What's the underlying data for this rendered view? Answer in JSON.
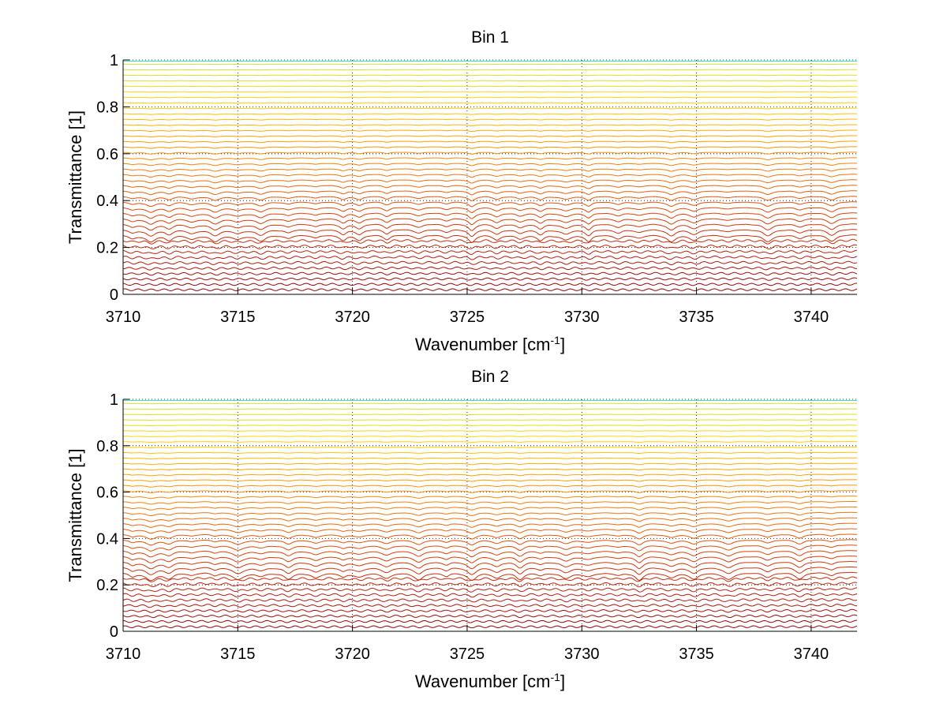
{
  "figure": {
    "background": "#ffffff"
  },
  "chart_data": [
    {
      "type": "line",
      "title": "Bin 1",
      "xlabel": "Wavenumber [cm",
      "xlabel_superscript": "-1",
      "xlabel_suffix": "]",
      "ylabel": "Transmittance [1]",
      "xlim": [
        3710,
        3742
      ],
      "ylim": [
        0,
        1
      ],
      "xticks": [
        3710,
        3715,
        3720,
        3725,
        3730,
        3735,
        3740
      ],
      "xtick_labels": [
        "3710",
        "3715",
        "3720",
        "3725",
        "3730",
        "3735",
        "3740"
      ],
      "yticks": [
        0,
        0.2,
        0.4,
        0.6,
        0.8,
        1
      ],
      "ytick_labels": [
        "0",
        "0.2",
        "0.4",
        "0.6",
        "0.8",
        "1"
      ],
      "grid": true,
      "legend": "none",
      "series_count": 50,
      "absorption_lines": [
        3710.4,
        3711.2,
        3712.0,
        3713.0,
        3714.0,
        3715.0,
        3716.0,
        3717.2,
        3718.4,
        3719.6,
        3720.3,
        3721.5,
        3722.9,
        3724.1,
        3725.2,
        3726.3,
        3727.3,
        3728.2,
        3729.3,
        3730.3,
        3731.6,
        3732.5,
        3733.9,
        3734.9,
        3736.4,
        3738.1,
        3739.5,
        3740.9
      ],
      "colormap": [
        "#8b0000",
        "#b32010",
        "#d4400d",
        "#f07010",
        "#ffa000",
        "#ffd700",
        "#c8e63c",
        "#40e0d0"
      ],
      "notes_visible": "family of transmittance spectra from near 0 to near 1"
    },
    {
      "type": "line",
      "title": "Bin 2",
      "xlabel": "Wavenumber [cm",
      "xlabel_superscript": "-1",
      "xlabel_suffix": "]",
      "ylabel": "Transmittance [1]",
      "xlim": [
        3710,
        3742
      ],
      "ylim": [
        0,
        1
      ],
      "xticks": [
        3710,
        3715,
        3720,
        3725,
        3730,
        3735,
        3740
      ],
      "xtick_labels": [
        "3710",
        "3715",
        "3720",
        "3725",
        "3730",
        "3735",
        "3740"
      ],
      "yticks": [
        0,
        0.2,
        0.4,
        0.6,
        0.8,
        1
      ],
      "ytick_labels": [
        "0",
        "0.2",
        "0.4",
        "0.6",
        "0.8",
        "1"
      ],
      "grid": true,
      "legend": "none",
      "series_count": 50,
      "absorption_lines": [
        3710.4,
        3711.2,
        3712.0,
        3713.0,
        3714.0,
        3715.0,
        3716.0,
        3717.2,
        3718.4,
        3719.6,
        3720.3,
        3721.5,
        3722.9,
        3724.1,
        3725.2,
        3726.3,
        3727.3,
        3728.2,
        3729.3,
        3730.3,
        3731.6,
        3732.5,
        3733.9,
        3734.9,
        3736.4,
        3738.1,
        3739.5,
        3740.9
      ],
      "colormap": [
        "#8b0000",
        "#b32010",
        "#d4400d",
        "#f07010",
        "#ffa000",
        "#ffd700",
        "#c8e63c",
        "#40e0d0"
      ],
      "notes_visible": "family of transmittance spectra from near 0 to near 1"
    }
  ]
}
